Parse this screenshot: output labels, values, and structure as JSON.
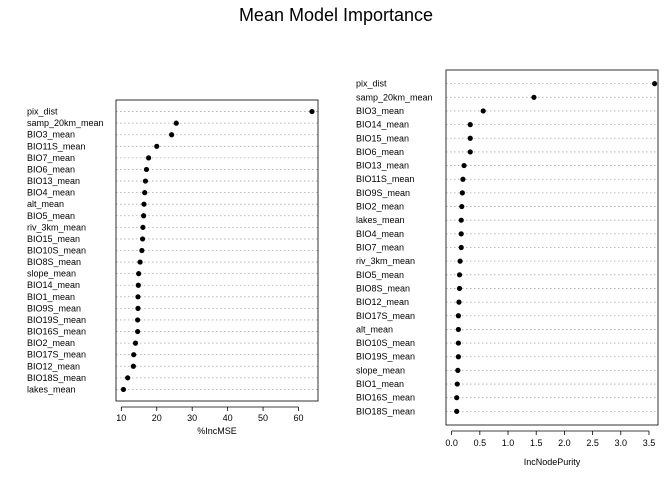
{
  "title": "Mean Model Importance",
  "chart_data": [
    {
      "type": "scatter",
      "style": "dotchart",
      "xlabel": "%IncMSE",
      "xlim": [
        8.5,
        65.5
      ],
      "xticks": [
        10,
        20,
        30,
        40,
        50,
        60
      ],
      "grid": "horizontal dotted",
      "categories": [
        "pix_dist",
        "samp_20km_mean",
        "BIO3_mean",
        "BIO11S_mean",
        "BIO7_mean",
        "BIO6_mean",
        "BIO13_mean",
        "BIO4_mean",
        "alt_mean",
        "BIO5_mean",
        "riv_3km_mean",
        "BIO15_mean",
        "BIO10S_mean",
        "BIO8S_mean",
        "slope_mean",
        "BIO14_mean",
        "BIO1_mean",
        "BIO9S_mean",
        "BIO19S_mean",
        "BIO16S_mean",
        "BIO2_mean",
        "BIO17S_mean",
        "BIO12_mean",
        "BIO18S_mean",
        "lakes_mean"
      ],
      "values": [
        63.8,
        25.5,
        24.2,
        20.0,
        17.7,
        17.1,
        16.8,
        16.6,
        16.4,
        16.3,
        16.1,
        16.0,
        15.8,
        15.3,
        14.9,
        14.8,
        14.7,
        14.7,
        14.6,
        14.6,
        14.0,
        13.5,
        13.4,
        11.8,
        10.6
      ]
    },
    {
      "type": "scatter",
      "style": "dotchart",
      "xlabel": "IncNodePurity",
      "xlim": [
        -0.1,
        3.66
      ],
      "xticks": [
        0.0,
        0.5,
        1.0,
        1.5,
        2.0,
        2.5,
        3.0,
        3.5
      ],
      "xtick_labels": [
        "0.0",
        "0.5",
        "1.0",
        "1.5",
        "2.0",
        "2.5",
        "3.0",
        "3.5"
      ],
      "grid": "horizontal dotted",
      "categories": [
        "pix_dist",
        "samp_20km_mean",
        "BIO3_mean",
        "BIO14_mean",
        "BIO15_mean",
        "BIO6_mean",
        "BIO13_mean",
        "BIO11S_mean",
        "BIO9S_mean",
        "BIO2_mean",
        "lakes_mean",
        "BIO4_mean",
        "BIO7_mean",
        "riv_3km_mean",
        "BIO5_mean",
        "BIO8S_mean",
        "BIO12_mean",
        "BIO17S_mean",
        "alt_mean",
        "BIO10S_mean",
        "BIO19S_mean",
        "slope_mean",
        "BIO1_mean",
        "BIO16S_mean",
        "BIO18S_mean"
      ],
      "values": [
        3.6,
        1.46,
        0.56,
        0.33,
        0.33,
        0.33,
        0.22,
        0.2,
        0.19,
        0.18,
        0.17,
        0.17,
        0.17,
        0.15,
        0.14,
        0.14,
        0.13,
        0.12,
        0.12,
        0.12,
        0.12,
        0.11,
        0.1,
        0.09,
        0.09
      ]
    }
  ]
}
